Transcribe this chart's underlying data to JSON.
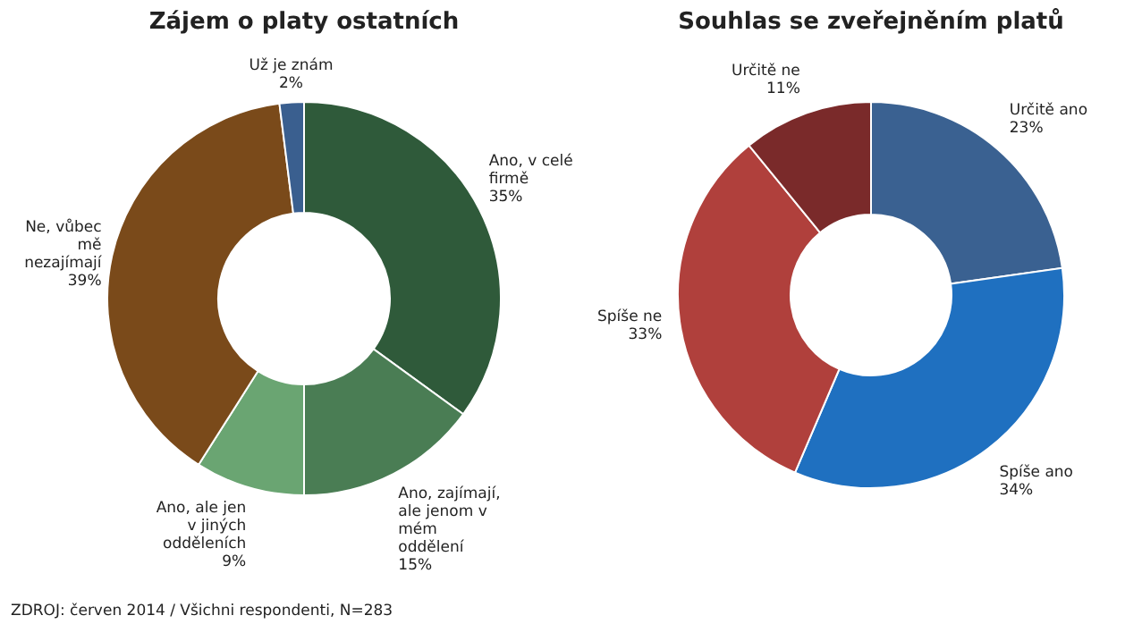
{
  "chart_data": [
    {
      "type": "donut",
      "title": "Zájem o platy ostatních",
      "categories": [
        "Ano, v celé firmě",
        "Ano, zajímají, ale jenom v mém oddělení",
        "Ano, ale jen v jiných odděleních",
        "Ne, vůbec mě nezajímají",
        "Už je znám"
      ],
      "values": [
        35,
        15,
        9,
        39,
        2
      ],
      "value_labels": [
        "35%",
        "15%",
        "9%",
        "39%",
        "2%"
      ],
      "colors": [
        "#2f5a3a",
        "#4a7d54",
        "#6aa572",
        "#7a4a1a",
        "#3a5f8f"
      ],
      "annotations": [
        "ZDROJ: červen 2014 / Všichni respondenti, N=283"
      ]
    },
    {
      "type": "donut",
      "title": "Souhlas se zveřejněním platů",
      "categories": [
        "Určitě ano",
        "Spíše ano",
        "Spíše ne",
        "Určitě ne"
      ],
      "values": [
        23,
        34,
        33,
        11
      ],
      "value_labels": [
        "23%",
        "34%",
        "33%",
        "11%"
      ],
      "colors": [
        "#3a6191",
        "#1f70c0",
        "#b0403c",
        "#7a2a2a"
      ]
    }
  ]
}
